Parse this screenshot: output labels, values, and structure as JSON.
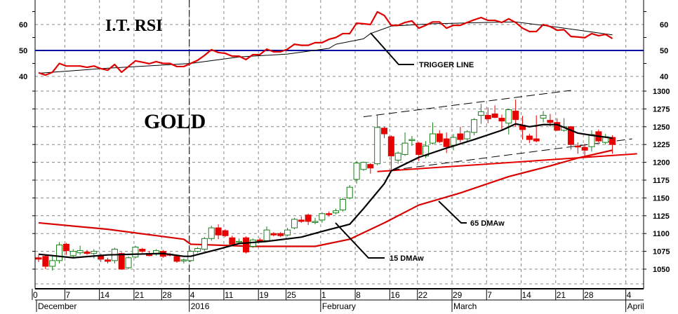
{
  "chart_data": {
    "type": "candlestick",
    "panels": [
      {
        "name": "I.T. RSI",
        "ylim": [
          38,
          66
        ],
        "ticks": [
          60,
          50,
          40
        ],
        "reference_line": 50
      },
      {
        "name": "GOLD",
        "ylim": [
          1038,
          1310
        ],
        "ticks": [
          1300,
          1275,
          1250,
          1225,
          1200,
          1175,
          1150,
          1125,
          1100,
          1075,
          1050
        ]
      }
    ],
    "titles": {
      "rsi": "I.T. RSI",
      "price": "GOLD"
    },
    "annotations": {
      "trigger": "TRIGGER LINE",
      "ma65": "65 DMAw",
      "ma15": "15 DMAw"
    },
    "x_ticks": [
      {
        "date": "2015-11-30",
        "label": "0"
      },
      {
        "date": "2015-12-07",
        "label": "7"
      },
      {
        "date": "2015-12-14",
        "label": "14"
      },
      {
        "date": "2015-12-21",
        "label": "21"
      },
      {
        "date": "2015-12-28",
        "label": "28"
      },
      {
        "date": "2016-01-04",
        "label": "4"
      },
      {
        "date": "2016-01-11",
        "label": "11"
      },
      {
        "date": "2016-01-19",
        "label": "19"
      },
      {
        "date": "2016-01-25",
        "label": "25"
      },
      {
        "date": "2016-02-01",
        "label": "1"
      },
      {
        "date": "2016-02-08",
        "label": "8"
      },
      {
        "date": "2016-02-16",
        "label": "16"
      },
      {
        "date": "2016-02-22",
        "label": "22"
      },
      {
        "date": "2016-02-29",
        "label": "29"
      },
      {
        "date": "2016-03-07",
        "label": "7"
      },
      {
        "date": "2016-03-14",
        "label": "14"
      },
      {
        "date": "2016-03-21",
        "label": "21"
      },
      {
        "date": "2016-03-28",
        "label": "28"
      },
      {
        "date": "2016-04-04",
        "label": "4"
      }
    ],
    "months": [
      {
        "date": "2015-11-30",
        "label": "December"
      },
      {
        "date": "2016-01-04",
        "label": "2016"
      },
      {
        "date": "2016-02-01",
        "label": "February"
      },
      {
        "date": "2016-02-29",
        "label": "March"
      },
      {
        "date": "2016-04-04",
        "label": "April"
      }
    ],
    "year_marker": "2016-01-04",
    "candles_columns": [
      "date",
      "open",
      "high",
      "low",
      "close"
    ],
    "candles": [
      [
        "2015-12-01",
        1066,
        1070,
        1060,
        1064
      ],
      [
        "2015-12-02",
        1068,
        1070,
        1050,
        1054
      ],
      [
        "2015-12-03",
        1054,
        1069,
        1048,
        1062
      ],
      [
        "2015-12-04",
        1062,
        1088,
        1058,
        1084
      ],
      [
        "2015-12-07",
        1085,
        1087,
        1070,
        1076
      ],
      [
        "2015-12-08",
        1069,
        1078,
        1066,
        1075
      ],
      [
        "2015-12-09",
        1073,
        1083,
        1070,
        1076
      ],
      [
        "2015-12-10",
        1074,
        1077,
        1070,
        1072
      ],
      [
        "2015-12-11",
        1072,
        1078,
        1065,
        1075
      ],
      [
        "2015-12-14",
        1069,
        1072,
        1060,
        1064
      ],
      [
        "2015-12-15",
        1063,
        1066,
        1058,
        1061
      ],
      [
        "2015-12-16",
        1062,
        1080,
        1058,
        1078
      ],
      [
        "2015-12-17",
        1072,
        1074,
        1049,
        1050
      ],
      [
        "2015-12-18",
        1052,
        1068,
        1050,
        1066
      ],
      [
        "2015-12-21",
        1067,
        1083,
        1065,
        1081
      ],
      [
        "2015-12-22",
        1078,
        1080,
        1073,
        1075
      ],
      [
        "2015-12-23",
        1072,
        1075,
        1068,
        1069
      ],
      [
        "2015-12-24",
        1071,
        1078,
        1069,
        1076
      ],
      [
        "2015-12-28",
        1075,
        1077,
        1066,
        1068
      ],
      [
        "2015-12-29",
        1071,
        1073,
        1068,
        1070
      ],
      [
        "2015-12-30",
        1068,
        1070,
        1059,
        1061
      ],
      [
        "2015-12-31",
        1062,
        1065,
        1058,
        1063
      ],
      [
        "2016-01-04",
        1062,
        1077,
        1060,
        1075
      ],
      [
        "2016-01-05",
        1075,
        1081,
        1073,
        1079
      ],
      [
        "2016-01-06",
        1078,
        1095,
        1076,
        1093
      ],
      [
        "2016-01-07",
        1093,
        1111,
        1090,
        1108
      ],
      [
        "2016-01-08",
        1108,
        1113,
        1092,
        1098
      ],
      [
        "2016-01-11",
        1104,
        1106,
        1095,
        1097
      ],
      [
        "2016-01-12",
        1094,
        1097,
        1083,
        1085
      ],
      [
        "2016-01-13",
        1088,
        1093,
        1086,
        1089
      ],
      [
        "2016-01-14",
        1094,
        1096,
        1072,
        1074
      ],
      [
        "2016-01-15",
        1082,
        1093,
        1080,
        1091
      ],
      [
        "2016-01-19",
        1091,
        1094,
        1088,
        1090
      ],
      [
        "2016-01-20",
        1090,
        1110,
        1088,
        1105
      ],
      [
        "2016-01-21",
        1100,
        1102,
        1096,
        1098
      ],
      [
        "2016-01-22",
        1100,
        1102,
        1095,
        1097
      ],
      [
        "2016-01-25",
        1098,
        1108,
        1096,
        1105
      ],
      [
        "2016-01-26",
        1108,
        1122,
        1106,
        1120
      ],
      [
        "2016-01-27",
        1119,
        1124,
        1115,
        1117
      ],
      [
        "2016-01-28",
        1126,
        1128,
        1112,
        1117
      ],
      [
        "2016-01-29",
        1117,
        1122,
        1113,
        1117
      ],
      [
        "2016-02-01",
        1119,
        1130,
        1115,
        1128
      ],
      [
        "2016-02-02",
        1128,
        1131,
        1124,
        1127
      ],
      [
        "2016-02-03",
        1129,
        1135,
        1127,
        1132
      ],
      [
        "2016-02-04",
        1133,
        1150,
        1131,
        1148
      ],
      [
        "2016-02-05",
        1150,
        1168,
        1148,
        1165
      ],
      [
        "2016-02-08",
        1176,
        1202,
        1170,
        1199
      ],
      [
        "2016-02-09",
        1190,
        1201,
        1188,
        1200
      ],
      [
        "2016-02-10",
        1197,
        1199,
        1184,
        1192
      ],
      [
        "2016-02-11",
        1198,
        1266,
        1196,
        1249
      ],
      [
        "2016-02-12",
        1248,
        1250,
        1234,
        1240
      ],
      [
        "2016-02-16",
        1236,
        1238,
        1190,
        1209
      ],
      [
        "2016-02-17",
        1203,
        1215,
        1198,
        1213
      ],
      [
        "2016-02-18",
        1211,
        1242,
        1209,
        1227
      ],
      [
        "2016-02-19",
        1232,
        1237,
        1223,
        1232
      ],
      [
        "2016-02-22",
        1227,
        1229,
        1202,
        1211
      ],
      [
        "2016-02-23",
        1209,
        1230,
        1206,
        1223
      ],
      [
        "2016-02-24",
        1227,
        1256,
        1225,
        1240
      ],
      [
        "2016-02-25",
        1240,
        1245,
        1227,
        1229
      ],
      [
        "2016-02-26",
        1233,
        1242,
        1213,
        1222
      ],
      [
        "2016-02-29",
        1224,
        1240,
        1217,
        1235
      ],
      [
        "2016-03-01",
        1240,
        1250,
        1228,
        1232
      ],
      [
        "2016-03-02",
        1233,
        1245,
        1230,
        1243
      ],
      [
        "2016-03-03",
        1242,
        1262,
        1238,
        1260
      ],
      [
        "2016-03-04",
        1266,
        1282,
        1254,
        1271
      ],
      [
        "2016-03-07",
        1266,
        1277,
        1255,
        1261
      ],
      [
        "2016-03-08",
        1268,
        1280,
        1262,
        1263
      ],
      [
        "2016-03-09",
        1262,
        1267,
        1245,
        1258
      ],
      [
        "2016-03-10",
        1255,
        1275,
        1239,
        1274
      ],
      [
        "2016-03-11",
        1272,
        1288,
        1250,
        1260
      ],
      [
        "2016-03-14",
        1252,
        1265,
        1232,
        1246
      ],
      [
        "2016-03-15",
        1237,
        1240,
        1227,
        1232
      ],
      [
        "2016-03-16",
        1233,
        1266,
        1228,
        1230
      ],
      [
        "2016-03-17",
        1262,
        1272,
        1256,
        1266
      ],
      [
        "2016-03-18",
        1259,
        1268,
        1250,
        1256
      ],
      [
        "2016-03-21",
        1256,
        1262,
        1244,
        1245
      ],
      [
        "2016-03-22",
        1245,
        1262,
        1243,
        1250
      ],
      [
        "2016-03-23",
        1250,
        1251,
        1218,
        1225
      ],
      [
        "2016-03-24",
        1223,
        1228,
        1212,
        1222
      ],
      [
        "2016-03-28",
        1221,
        1226,
        1207,
        1217
      ],
      [
        "2016-03-29",
        1222,
        1245,
        1215,
        1239
      ],
      [
        "2016-03-30",
        1243,
        1246,
        1228,
        1230
      ],
      [
        "2016-03-31",
        1228,
        1240,
        1225,
        1236
      ],
      [
        "2016-04-01",
        1235,
        1238,
        1212,
        1225
      ]
    ],
    "rsi": [
      41.4,
      40.5,
      41.6,
      45,
      44,
      44,
      44,
      43.5,
      44,
      43,
      42.4,
      44.6,
      41.6,
      43.8,
      46,
      45.5,
      44.9,
      45.7,
      45,
      45,
      43.8,
      43.8,
      45,
      46.2,
      48.1,
      50.3,
      49.2,
      48.9,
      47.8,
      47.8,
      46.5,
      48.4,
      48.4,
      50.5,
      49.5,
      49.5,
      50.5,
      52.4,
      52,
      52,
      53,
      53,
      54.3,
      55,
      56.5,
      56.5,
      60.5,
      60.3,
      60,
      64.9,
      63.5,
      59.7,
      59.7,
      60.8,
      61.4,
      58.6,
      59.7,
      61,
      61,
      58.6,
      59.7,
      59.7,
      60.8,
      61.8,
      62.7,
      61.6,
      61.6,
      60.8,
      62.2,
      60.8,
      58.6,
      57.3,
      57.3,
      60,
      59.2,
      57.8,
      58,
      55.4,
      55.2,
      54.9,
      56.5,
      55.7,
      56.2,
      54.6
    ],
    "trigger_line": [
      [
        "2015-12-01",
        41.2
      ],
      [
        "2015-12-14",
        43
      ],
      [
        "2016-01-04",
        45
      ],
      [
        "2016-01-13",
        47.5
      ],
      [
        "2016-01-25",
        48.6
      ],
      [
        "2016-02-02",
        50.8
      ],
      [
        "2016-02-03",
        52.4
      ],
      [
        "2016-02-09",
        54.5
      ],
      [
        "2016-02-10",
        56.5
      ],
      [
        "2016-02-16",
        59.4
      ],
      [
        "2016-02-24",
        60.3
      ],
      [
        "2016-03-07",
        60.8
      ],
      [
        "2016-03-11",
        61
      ],
      [
        "2016-03-21",
        59
      ],
      [
        "2016-04-01",
        56
      ]
    ],
    "ma15": [
      [
        "2015-12-01",
        1071
      ],
      [
        "2015-12-08",
        1066
      ],
      [
        "2015-12-15",
        1070
      ],
      [
        "2015-12-28",
        1072
      ],
      [
        "2015-12-31",
        1068
      ],
      [
        "2016-01-04",
        1068
      ],
      [
        "2016-01-08",
        1078
      ],
      [
        "2016-01-13",
        1086
      ],
      [
        "2016-01-20",
        1089
      ],
      [
        "2016-01-27",
        1095
      ],
      [
        "2016-02-01",
        1103
      ],
      [
        "2016-02-05",
        1113
      ],
      [
        "2016-02-09",
        1135
      ],
      [
        "2016-02-12",
        1170
      ],
      [
        "2016-02-16",
        1188
      ],
      [
        "2016-02-22",
        1207
      ],
      [
        "2016-02-26",
        1220
      ],
      [
        "2016-03-03",
        1232
      ],
      [
        "2016-03-09",
        1245
      ],
      [
        "2016-03-11",
        1254
      ],
      [
        "2016-03-15",
        1250
      ],
      [
        "2016-03-17",
        1253
      ],
      [
        "2016-03-21",
        1253
      ],
      [
        "2016-03-24",
        1241
      ],
      [
        "2016-03-29",
        1238
      ],
      [
        "2016-04-01",
        1234
      ]
    ],
    "ma65": [
      [
        "2015-12-01",
        1115
      ],
      [
        "2015-12-15",
        1106
      ],
      [
        "2015-12-31",
        1092
      ],
      [
        "2016-01-04",
        1085
      ],
      [
        "2016-01-15",
        1082
      ],
      [
        "2016-01-29",
        1082
      ],
      [
        "2016-02-05",
        1092
      ],
      [
        "2016-02-12",
        1115
      ],
      [
        "2016-02-22",
        1140
      ],
      [
        "2016-03-01",
        1157
      ],
      [
        "2016-03-10",
        1180
      ],
      [
        "2016-03-18",
        1195
      ],
      [
        "2016-03-24",
        1206
      ],
      [
        "2016-04-01",
        1217
      ]
    ],
    "trendlines": [
      {
        "style": "solid-red",
        "from": [
          "2016-02-11",
          1187
        ],
        "to": [
          "2016-04-06",
          1212
        ]
      },
      {
        "style": "dashed-black",
        "from": [
          "2016-02-09",
          1264
        ],
        "to": [
          "2016-03-23",
          1301
        ]
      },
      {
        "style": "dashed-black",
        "from": [
          "2016-02-16",
          1189
        ],
        "to": [
          "2016-04-05",
          1233
        ]
      }
    ],
    "colors": {
      "up": "#1a7f1a",
      "down": "#e60000",
      "rsi": "#e00000",
      "ma65": "#d80000",
      "ma15": "#000000",
      "trigger": "#000000",
      "reference": "#0000a0",
      "grid": "#888888"
    }
  }
}
